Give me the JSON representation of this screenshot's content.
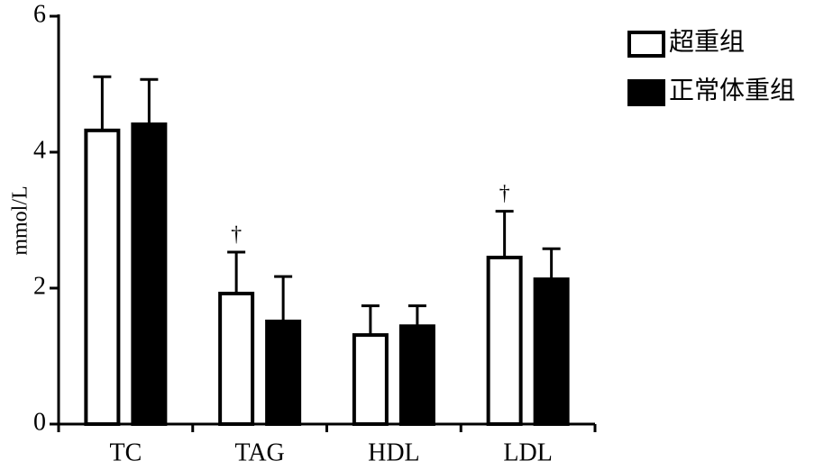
{
  "chart_data": {
    "type": "bar",
    "y_label": "mmol/L",
    "categories": [
      "TC",
      "TAG",
      "HDL",
      "LDL"
    ],
    "series": [
      {
        "name": "超重组",
        "color": "#ffffff",
        "values": [
          4.32,
          1.92,
          1.31,
          2.45
        ],
        "errors": [
          0.79,
          0.61,
          0.43,
          0.68
        ]
      },
      {
        "name": "正常体重组",
        "color": "#000000",
        "values": [
          4.41,
          1.51,
          1.44,
          2.13
        ],
        "errors": [
          0.66,
          0.66,
          0.3,
          0.45
        ]
      }
    ],
    "annotations": [
      {
        "text": "†",
        "category": "TAG",
        "series": "超重组"
      },
      {
        "text": "†",
        "category": "LDL",
        "series": "超重组"
      }
    ],
    "ylim": [
      0,
      6
    ],
    "yticks": [
      0,
      2,
      4,
      6
    ]
  }
}
